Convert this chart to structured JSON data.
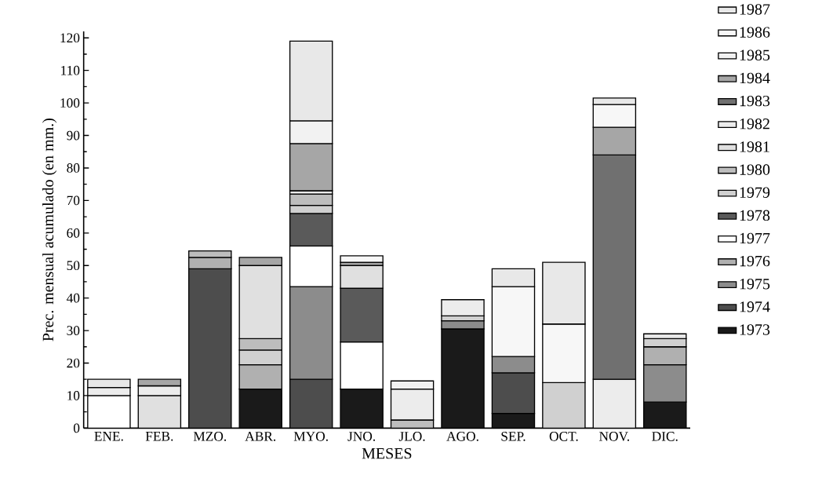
{
  "chart_data": {
    "type": "bar",
    "stacked": true,
    "xlabel": "MESES",
    "ylabel": "Prec. mensual acumulado (en mm.)",
    "categories": [
      "ENE.",
      "FEB.",
      "MZO.",
      "ABR.",
      "MYO.",
      "JNO.",
      "JLO.",
      "AGO.",
      "SEP.",
      "OCT.",
      "NOV.",
      "DIC."
    ],
    "ylim": [
      0,
      122
    ],
    "yticks": [
      0,
      10,
      20,
      30,
      40,
      50,
      60,
      70,
      80,
      90,
      100,
      110,
      120
    ],
    "legend": "right",
    "series": [
      {
        "name": "1973",
        "color": "#1a1a1a",
        "values": [
          null,
          null,
          null,
          12,
          null,
          12,
          null,
          30.5,
          4.5,
          null,
          null,
          8
        ]
      },
      {
        "name": "1974",
        "color": "#4d4d4d",
        "values": [
          null,
          null,
          49,
          null,
          15,
          null,
          null,
          null,
          12.5,
          null,
          null,
          null
        ]
      },
      {
        "name": "1975",
        "color": "#8c8c8c",
        "values": [
          null,
          null,
          null,
          null,
          28.5,
          null,
          null,
          2.5,
          5,
          null,
          null,
          11.5
        ]
      },
      {
        "name": "1976",
        "color": "#b0b0b0",
        "values": [
          null,
          null,
          3.5,
          7.5,
          null,
          null,
          null,
          null,
          null,
          null,
          null,
          5.5
        ]
      },
      {
        "name": "1977",
        "color": "#ffffff",
        "values": [
          10,
          null,
          null,
          null,
          12.5,
          14.5,
          null,
          null,
          null,
          null,
          null,
          null
        ]
      },
      {
        "name": "1978",
        "color": "#5a5a5a",
        "values": [
          null,
          null,
          null,
          null,
          10,
          16.5,
          null,
          null,
          null,
          null,
          null,
          null
        ]
      },
      {
        "name": "1979",
        "color": "#d0d0d0",
        "values": [
          null,
          null,
          null,
          4.5,
          2.5,
          null,
          null,
          1.5,
          null,
          14,
          null,
          2.5
        ]
      },
      {
        "name": "1980",
        "color": "#bdbdbd",
        "values": [
          null,
          null,
          2,
          3.5,
          3.5,
          null,
          2.5,
          null,
          null,
          null,
          null,
          null
        ]
      },
      {
        "name": "1981",
        "color": "#e0e0e0",
        "values": [
          null,
          10,
          null,
          22.5,
          null,
          7,
          null,
          null,
          null,
          null,
          null,
          null
        ]
      },
      {
        "name": "1982",
        "color": "#ececec",
        "values": [
          2.5,
          3,
          null,
          null,
          1,
          null,
          9.5,
          5,
          null,
          null,
          15,
          null
        ]
      },
      {
        "name": "1983",
        "color": "#707070",
        "values": [
          null,
          null,
          null,
          null,
          null,
          null,
          null,
          null,
          null,
          null,
          69,
          null
        ]
      },
      {
        "name": "1984",
        "color": "#a6a6a6",
        "values": [
          null,
          2,
          null,
          2.5,
          14.5,
          1,
          null,
          null,
          null,
          null,
          8.5,
          null
        ]
      },
      {
        "name": "1985",
        "color": "#f2f2f2",
        "values": [
          null,
          null,
          null,
          null,
          7,
          null,
          2.5,
          null,
          null,
          null,
          null,
          null
        ]
      },
      {
        "name": "1986",
        "color": "#f7f7f7",
        "values": [
          null,
          null,
          null,
          null,
          null,
          2,
          null,
          null,
          21.5,
          18,
          7,
          null
        ]
      },
      {
        "name": "1987",
        "color": "#e8e8e8",
        "values": [
          2.5,
          null,
          null,
          null,
          24.5,
          null,
          null,
          null,
          5.5,
          19,
          2,
          1.5
        ]
      }
    ]
  }
}
